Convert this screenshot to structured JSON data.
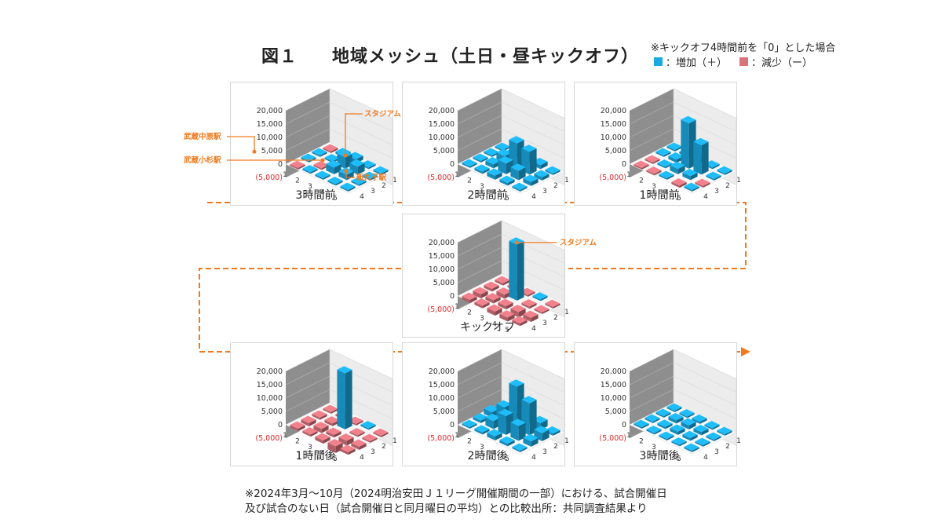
{
  "title": {
    "figure": "図１",
    "main": "地域メッシュ（土日・昼キックオフ）"
  },
  "legend": {
    "note": "※キックオフ4時間前を「0」とした場合",
    "increase_label": "：増加（＋）",
    "decrease_label": "：減少（ー）",
    "increase_color": "#1ba9e1",
    "decrease_color": "#d9737c"
  },
  "chart_data": [
    {
      "type": "bar3d",
      "title": "3時間前",
      "z_ticks": [
        "20,000",
        "15,000",
        "10,000",
        "5,000",
        "0",
        "(5,000)"
      ],
      "x_ticks": [
        "1",
        "2",
        "3",
        "4",
        "5"
      ],
      "y_ticks": [
        "1",
        "2",
        "3",
        "4"
      ],
      "zlim": [
        -5000,
        20000
      ],
      "bars": [
        {
          "x": 1,
          "y": 1,
          "value": -600
        },
        {
          "x": 1,
          "y": 2,
          "value": 200
        },
        {
          "x": 1,
          "y": 3,
          "value": 0
        },
        {
          "x": 1,
          "y": 4,
          "value": -300
        },
        {
          "x": 2,
          "y": 1,
          "value": 300
        },
        {
          "x": 2,
          "y": 2,
          "value": -500
        },
        {
          "x": 2,
          "y": 3,
          "value": 400
        },
        {
          "x": 2,
          "y": 4,
          "value": 800
        },
        {
          "x": 3,
          "y": 1,
          "value": 600
        },
        {
          "x": 3,
          "y": 2,
          "value": 2500
        },
        {
          "x": 3,
          "y": 3,
          "value": 4200
        },
        {
          "x": 3,
          "y": 4,
          "value": 1500
        },
        {
          "x": 4,
          "y": 1,
          "value": 400
        },
        {
          "x": 4,
          "y": 2,
          "value": 2000
        },
        {
          "x": 4,
          "y": 3,
          "value": 3000
        },
        {
          "x": 4,
          "y": 4,
          "value": 600
        },
        {
          "x": 5,
          "y": 1,
          "value": 300
        },
        {
          "x": 5,
          "y": 2,
          "value": 600
        },
        {
          "x": 5,
          "y": 3,
          "value": 500
        },
        {
          "x": 5,
          "y": 4,
          "value": 200
        }
      ],
      "annotations": [
        {
          "label": "スタジアム",
          "x": 3,
          "y": 3
        },
        {
          "label": "武蔵中原駅",
          "x": 1,
          "y": 3
        },
        {
          "label": "武蔵小杉駅",
          "x": 3,
          "y": 1
        },
        {
          "label": "新丸子駅",
          "x": 4,
          "y": 2
        }
      ]
    },
    {
      "type": "bar3d",
      "title": "2時間前",
      "z_ticks": [
        "20,000",
        "15,000",
        "10,000",
        "5,000",
        "0",
        "(5,000)"
      ],
      "x_ticks": [
        "1",
        "2",
        "3",
        "4",
        "5"
      ],
      "y_ticks": [
        "1",
        "2",
        "3",
        "4"
      ],
      "zlim": [
        -5000,
        20000
      ],
      "bars": [
        {
          "x": 1,
          "y": 1,
          "value": 300
        },
        {
          "x": 1,
          "y": 2,
          "value": 500
        },
        {
          "x": 1,
          "y": 3,
          "value": 600
        },
        {
          "x": 1,
          "y": 4,
          "value": 400
        },
        {
          "x": 2,
          "y": 1,
          "value": 800
        },
        {
          "x": 2,
          "y": 2,
          "value": 1500
        },
        {
          "x": 2,
          "y": 3,
          "value": 2500
        },
        {
          "x": 2,
          "y": 4,
          "value": 1200
        },
        {
          "x": 3,
          "y": 1,
          "value": 1500
        },
        {
          "x": 3,
          "y": 2,
          "value": 4000
        },
        {
          "x": 3,
          "y": 3,
          "value": 9500
        },
        {
          "x": 3,
          "y": 4,
          "value": 3000
        },
        {
          "x": 4,
          "y": 1,
          "value": 1000
        },
        {
          "x": 4,
          "y": 2,
          "value": 3500
        },
        {
          "x": 4,
          "y": 3,
          "value": 8500
        },
        {
          "x": 4,
          "y": 4,
          "value": 1500
        },
        {
          "x": 5,
          "y": 1,
          "value": 500
        },
        {
          "x": 5,
          "y": 2,
          "value": 1500
        },
        {
          "x": 5,
          "y": 3,
          "value": 1200
        },
        {
          "x": 5,
          "y": 4,
          "value": 600
        }
      ],
      "annotations": []
    },
    {
      "type": "bar3d",
      "title": "1時間前",
      "z_ticks": [
        "20,000",
        "15,000",
        "10,000",
        "5,000",
        "0",
        "(5,000)"
      ],
      "x_ticks": [
        "1",
        "2",
        "3",
        "4",
        "5"
      ],
      "y_ticks": [
        "1",
        "2",
        "3",
        "4"
      ],
      "zlim": [
        -5000,
        20000
      ],
      "bars": [
        {
          "x": 1,
          "y": 1,
          "value": -400
        },
        {
          "x": 1,
          "y": 2,
          "value": -300
        },
        {
          "x": 1,
          "y": 3,
          "value": 200
        },
        {
          "x": 1,
          "y": 4,
          "value": 300
        },
        {
          "x": 2,
          "y": 1,
          "value": -600
        },
        {
          "x": 2,
          "y": 2,
          "value": 600
        },
        {
          "x": 2,
          "y": 3,
          "value": 1200
        },
        {
          "x": 2,
          "y": 4,
          "value": 800
        },
        {
          "x": 3,
          "y": 1,
          "value": 500
        },
        {
          "x": 3,
          "y": 2,
          "value": 2000
        },
        {
          "x": 3,
          "y": 3,
          "value": 17000
        },
        {
          "x": 3,
          "y": 4,
          "value": 1500
        },
        {
          "x": 4,
          "y": 1,
          "value": -800
        },
        {
          "x": 4,
          "y": 2,
          "value": 1500
        },
        {
          "x": 4,
          "y": 3,
          "value": 11000
        },
        {
          "x": 4,
          "y": 4,
          "value": 600
        },
        {
          "x": 5,
          "y": 1,
          "value": 300
        },
        {
          "x": 5,
          "y": 2,
          "value": -500
        },
        {
          "x": 5,
          "y": 3,
          "value": 600
        },
        {
          "x": 5,
          "y": 4,
          "value": 200
        }
      ],
      "annotations": []
    },
    {
      "type": "bar3d",
      "title": "キックオフ",
      "z_ticks": [
        "20,000",
        "15,000",
        "10,000",
        "5,000",
        "0",
        "(5,000)"
      ],
      "x_ticks": [
        "1",
        "2",
        "3",
        "4",
        "5"
      ],
      "y_ticks": [
        "1",
        "2",
        "3",
        "4"
      ],
      "zlim": [
        -5000,
        20000
      ],
      "bars": [
        {
          "x": 1,
          "y": 1,
          "value": -1200
        },
        {
          "x": 1,
          "y": 2,
          "value": -1500
        },
        {
          "x": 1,
          "y": 3,
          "value": -1000
        },
        {
          "x": 1,
          "y": 4,
          "value": -800
        },
        {
          "x": 2,
          "y": 1,
          "value": -1000
        },
        {
          "x": 2,
          "y": 2,
          "value": -1200
        },
        {
          "x": 2,
          "y": 3,
          "value": -1500
        },
        {
          "x": 2,
          "y": 4,
          "value": -600
        },
        {
          "x": 3,
          "y": 1,
          "value": -1500
        },
        {
          "x": 3,
          "y": 2,
          "value": -1200
        },
        {
          "x": 3,
          "y": 3,
          "value": 21000
        },
        {
          "x": 3,
          "y": 4,
          "value": -500
        },
        {
          "x": 4,
          "y": 1,
          "value": -1500
        },
        {
          "x": 4,
          "y": 2,
          "value": -2000
        },
        {
          "x": 4,
          "y": 3,
          "value": -800
        },
        {
          "x": 4,
          "y": 4,
          "value": 300
        },
        {
          "x": 5,
          "y": 1,
          "value": -1000
        },
        {
          "x": 5,
          "y": 2,
          "value": -1500
        },
        {
          "x": 5,
          "y": 3,
          "value": -600
        },
        {
          "x": 5,
          "y": 4,
          "value": -400
        }
      ],
      "annotations": [
        {
          "label": "スタジアム",
          "x": 3,
          "y": 3
        }
      ]
    },
    {
      "type": "bar3d",
      "title": "1時間後",
      "z_ticks": [
        "20,000",
        "15,000",
        "10,000",
        "5,000",
        "0",
        "(5,000)"
      ],
      "x_ticks": [
        "1",
        "2",
        "3",
        "4",
        "5"
      ],
      "y_ticks": [
        "1",
        "2",
        "3",
        "4"
      ],
      "zlim": [
        -5000,
        20000
      ],
      "bars": [
        {
          "x": 1,
          "y": 1,
          "value": -1000
        },
        {
          "x": 1,
          "y": 2,
          "value": -1200
        },
        {
          "x": 1,
          "y": 3,
          "value": -800
        },
        {
          "x": 1,
          "y": 4,
          "value": -600
        },
        {
          "x": 2,
          "y": 1,
          "value": -800
        },
        {
          "x": 2,
          "y": 2,
          "value": -1500
        },
        {
          "x": 2,
          "y": 3,
          "value": -1000
        },
        {
          "x": 2,
          "y": 4,
          "value": -500
        },
        {
          "x": 3,
          "y": 1,
          "value": -1200
        },
        {
          "x": 3,
          "y": 2,
          "value": -1000
        },
        {
          "x": 3,
          "y": 3,
          "value": 21000
        },
        {
          "x": 3,
          "y": 4,
          "value": -400
        },
        {
          "x": 4,
          "y": 1,
          "value": -2500
        },
        {
          "x": 4,
          "y": 2,
          "value": -1800
        },
        {
          "x": 4,
          "y": 3,
          "value": -600
        },
        {
          "x": 4,
          "y": 4,
          "value": 300
        },
        {
          "x": 5,
          "y": 1,
          "value": -1000
        },
        {
          "x": 5,
          "y": 2,
          "value": -1200
        },
        {
          "x": 5,
          "y": 3,
          "value": -500
        },
        {
          "x": 5,
          "y": 4,
          "value": -300
        }
      ],
      "annotations": []
    },
    {
      "type": "bar3d",
      "title": "2時間後",
      "z_ticks": [
        "20,000",
        "15,000",
        "10,000",
        "5,000",
        "0",
        "(5,000)"
      ],
      "x_ticks": [
        "1",
        "2",
        "3",
        "4",
        "5"
      ],
      "y_ticks": [
        "1",
        "2",
        "3",
        "4"
      ],
      "zlim": [
        -5000,
        20000
      ],
      "bars": [
        {
          "x": 1,
          "y": 1,
          "value": 300
        },
        {
          "x": 1,
          "y": 2,
          "value": 1000
        },
        {
          "x": 1,
          "y": 3,
          "value": 2000
        },
        {
          "x": 1,
          "y": 4,
          "value": 1000
        },
        {
          "x": 2,
          "y": 1,
          "value": 800
        },
        {
          "x": 2,
          "y": 2,
          "value": 3000
        },
        {
          "x": 2,
          "y": 3,
          "value": 6000
        },
        {
          "x": 2,
          "y": 4,
          "value": 2500
        },
        {
          "x": 3,
          "y": 1,
          "value": 1500
        },
        {
          "x": 3,
          "y": 2,
          "value": 7000
        },
        {
          "x": 3,
          "y": 3,
          "value": 16000
        },
        {
          "x": 3,
          "y": 4,
          "value": 5000
        },
        {
          "x": 4,
          "y": 1,
          "value": 1000
        },
        {
          "x": 4,
          "y": 2,
          "value": 5500
        },
        {
          "x": 4,
          "y": 3,
          "value": 12000
        },
        {
          "x": 4,
          "y": 4,
          "value": 2500
        },
        {
          "x": 5,
          "y": 1,
          "value": 500
        },
        {
          "x": 5,
          "y": 2,
          "value": 2000
        },
        {
          "x": 5,
          "y": 3,
          "value": 3000
        },
        {
          "x": 5,
          "y": 4,
          "value": 800
        }
      ],
      "annotations": []
    },
    {
      "type": "bar3d",
      "title": "3時間後",
      "z_ticks": [
        "20,000",
        "15,000",
        "10,000",
        "5,000",
        "0",
        "(5,000)"
      ],
      "x_ticks": [
        "1",
        "2",
        "3",
        "4",
        "5"
      ],
      "y_ticks": [
        "1",
        "2",
        "3",
        "4"
      ],
      "zlim": [
        -5000,
        20000
      ],
      "bars": [
        {
          "x": 1,
          "y": 1,
          "value": 200
        },
        {
          "x": 1,
          "y": 2,
          "value": 400
        },
        {
          "x": 1,
          "y": 3,
          "value": 600
        },
        {
          "x": 1,
          "y": 4,
          "value": 300
        },
        {
          "x": 2,
          "y": 1,
          "value": 300
        },
        {
          "x": 2,
          "y": 2,
          "value": 800
        },
        {
          "x": 2,
          "y": 3,
          "value": 1200
        },
        {
          "x": 2,
          "y": 4,
          "value": 600
        },
        {
          "x": 3,
          "y": 1,
          "value": 500
        },
        {
          "x": 3,
          "y": 2,
          "value": 1200
        },
        {
          "x": 3,
          "y": 3,
          "value": 1500
        },
        {
          "x": 3,
          "y": 4,
          "value": 800
        },
        {
          "x": 4,
          "y": 1,
          "value": 400
        },
        {
          "x": 4,
          "y": 2,
          "value": 1000
        },
        {
          "x": 4,
          "y": 3,
          "value": 1200
        },
        {
          "x": 4,
          "y": 4,
          "value": 500
        },
        {
          "x": 5,
          "y": 1,
          "value": 300
        },
        {
          "x": 5,
          "y": 2,
          "value": 500
        },
        {
          "x": 5,
          "y": 3,
          "value": 600
        },
        {
          "x": 5,
          "y": 4,
          "value": 300
        }
      ],
      "annotations": []
    }
  ],
  "footer": {
    "line1": "※2024年3月～10月（2024明治安田Ｊ１リーグ開催期間の一部）における、試合開催日",
    "line2": "及び試合のない日（試合開催日と同月曜日の平均）との比較出所：共同調査結果より"
  }
}
